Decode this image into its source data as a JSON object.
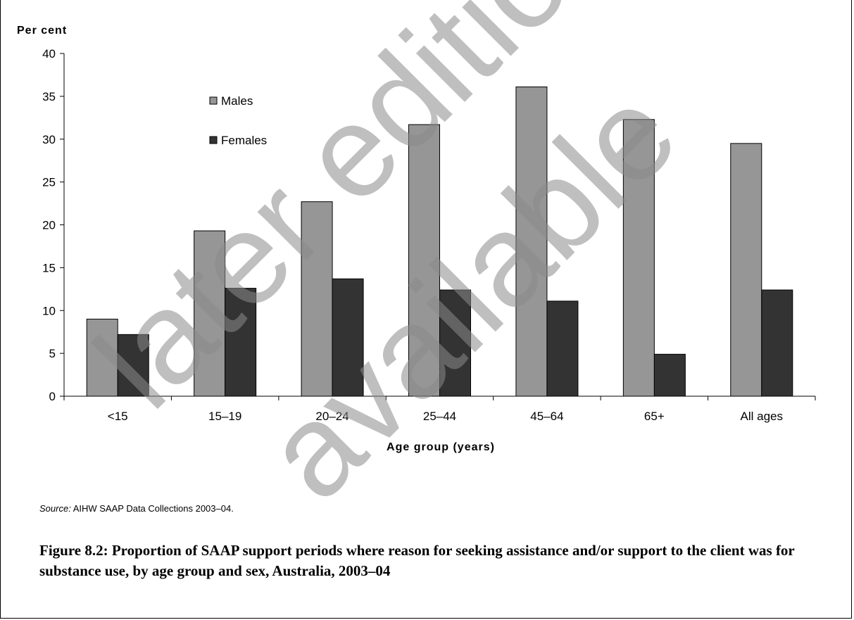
{
  "chart_data": {
    "type": "bar",
    "ylabel": "Per cent",
    "xlabel": "Age group (years)",
    "ylim": [
      0,
      40
    ],
    "yticks": [
      0,
      5,
      10,
      15,
      20,
      25,
      30,
      35,
      40
    ],
    "categories": [
      "<15",
      "15–19",
      "20–24",
      "25–44",
      "45–64",
      "65+",
      "All ages"
    ],
    "series": [
      {
        "name": "Males",
        "color": "#969696",
        "values": [
          9.0,
          19.3,
          22.7,
          31.7,
          36.1,
          32.3,
          29.5
        ]
      },
      {
        "name": "Females",
        "color": "#333333",
        "values": [
          7.2,
          12.6,
          13.7,
          12.4,
          11.1,
          4.9,
          12.4
        ]
      }
    ],
    "legend_placement": "upper-left inside plot",
    "grid": false
  },
  "source": {
    "label": "Source:",
    "text": " AIHW SAAP Data Collections 2003–04."
  },
  "caption": "Figure 8.2: Proportion of SAAP support periods where reason for seeking assistance and/or support to the client was for substance use, by age group and sex, Australia, 2003–04",
  "watermark": {
    "line1": "later edition",
    "line2": "available",
    "color": "#8a8a8a"
  }
}
